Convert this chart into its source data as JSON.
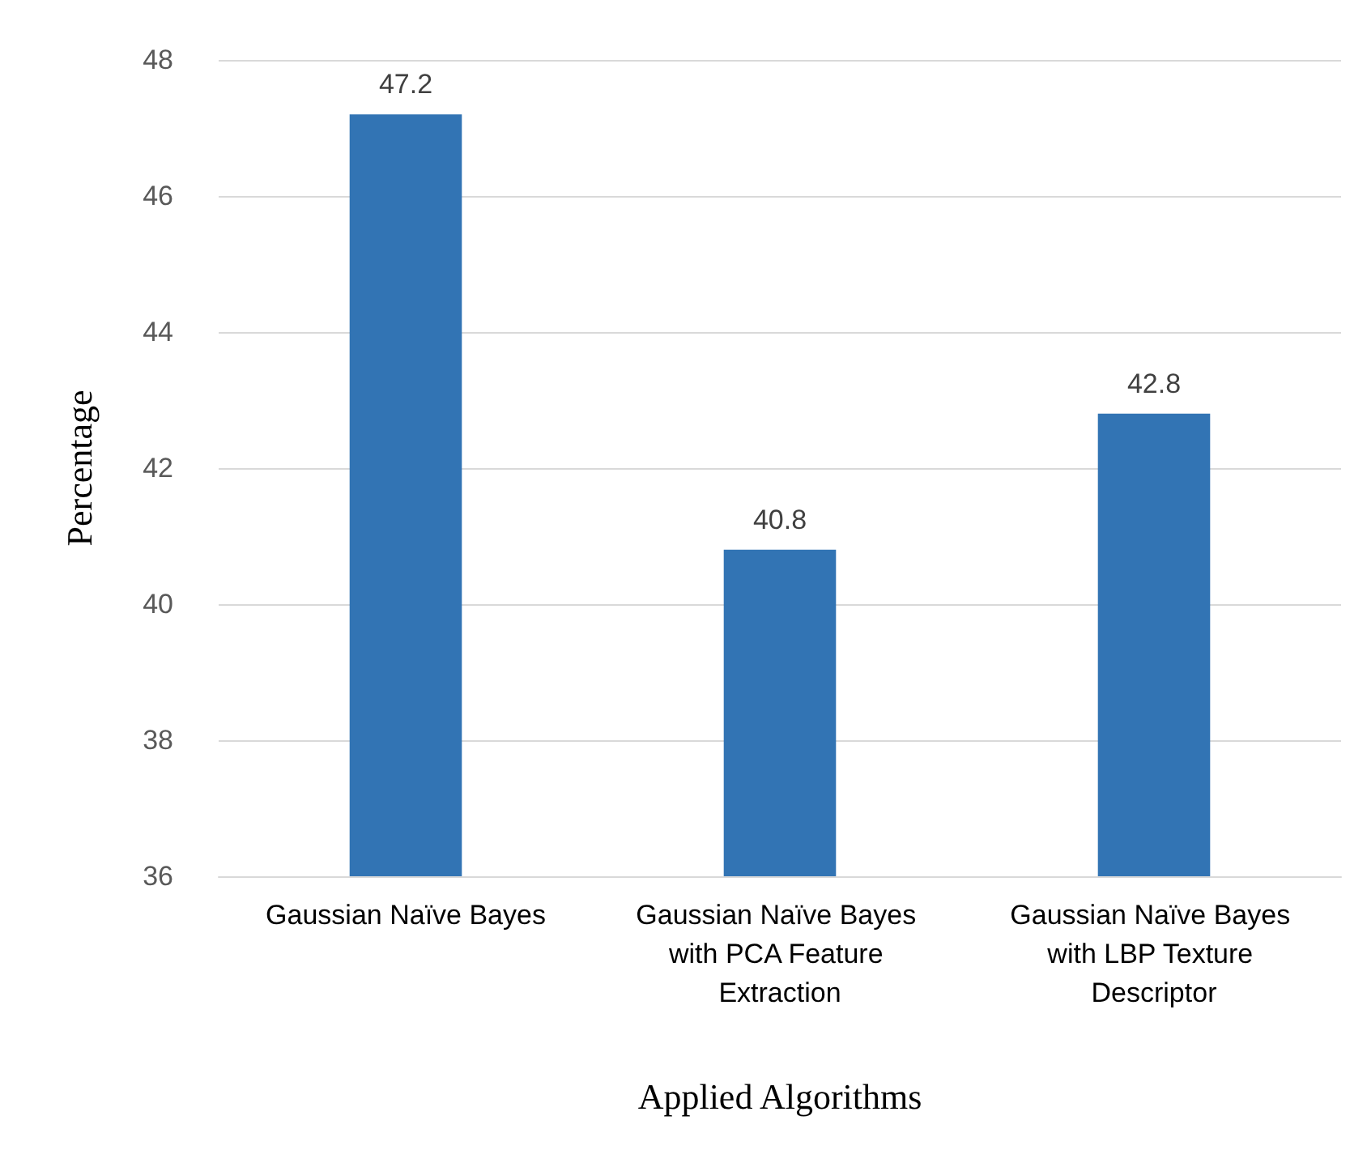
{
  "chart_data": {
    "type": "bar",
    "xlabel": "Applied Algorithms",
    "ylabel": "Percentage",
    "categories": [
      "Gaussian Naïve Bayes",
      "Gaussian Naïve Bayes with PCA Feature Extraction",
      "Gaussian Naïve Bayes with LBP Texture Descriptor"
    ],
    "values": [
      47.2,
      40.8,
      42.8
    ],
    "color": "#3274b4",
    "ylim": [
      36,
      48
    ],
    "yticks": [
      36,
      38,
      40,
      42,
      44,
      46,
      48
    ],
    "grid": "y",
    "data_labels": true
  }
}
